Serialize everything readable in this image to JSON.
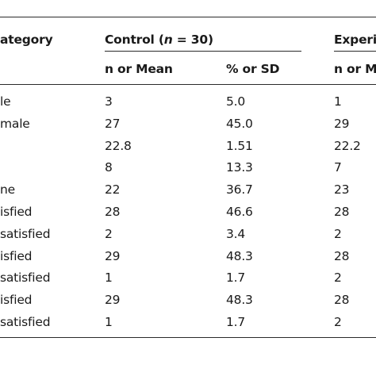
{
  "header": {
    "category_label": "ategory",
    "control_group": {
      "prefix": "Control (",
      "n_symbol": "n",
      "suffix": " = 30)"
    },
    "experimental_group_label": "Experim",
    "subheaders": {
      "control_mean": "n or Mean",
      "control_sd": "% or SD",
      "experimental_mean": "n or M"
    }
  },
  "rows": [
    {
      "category": "le",
      "c_mean": "3",
      "c_sd": "5.0",
      "e_mean": "1"
    },
    {
      "category": "male",
      "c_mean": "27",
      "c_sd": "45.0",
      "e_mean": "29"
    },
    {
      "category": "",
      "c_mean": "22.8",
      "c_sd": "1.51",
      "e_mean": "22.2"
    },
    {
      "category": "",
      "c_mean": "8",
      "c_sd": "13.3",
      "e_mean": "7"
    },
    {
      "category": "ne",
      "c_mean": "22",
      "c_sd": "36.7",
      "e_mean": "23"
    },
    {
      "category": "isfied",
      "c_mean": "28",
      "c_sd": "46.6",
      "e_mean": "28"
    },
    {
      "category": "satisfied",
      "c_mean": "2",
      "c_sd": "3.4",
      "e_mean": "2"
    },
    {
      "category": "isfied",
      "c_mean": "29",
      "c_sd": "48.3",
      "e_mean": "28"
    },
    {
      "category": "satisfied",
      "c_mean": "1",
      "c_sd": "1.7",
      "e_mean": "2"
    },
    {
      "category": "isfied",
      "c_mean": "29",
      "c_sd": "48.3",
      "e_mean": "28"
    },
    {
      "category": "satisfied",
      "c_mean": "1",
      "c_sd": "1.7",
      "e_mean": "2"
    }
  ]
}
